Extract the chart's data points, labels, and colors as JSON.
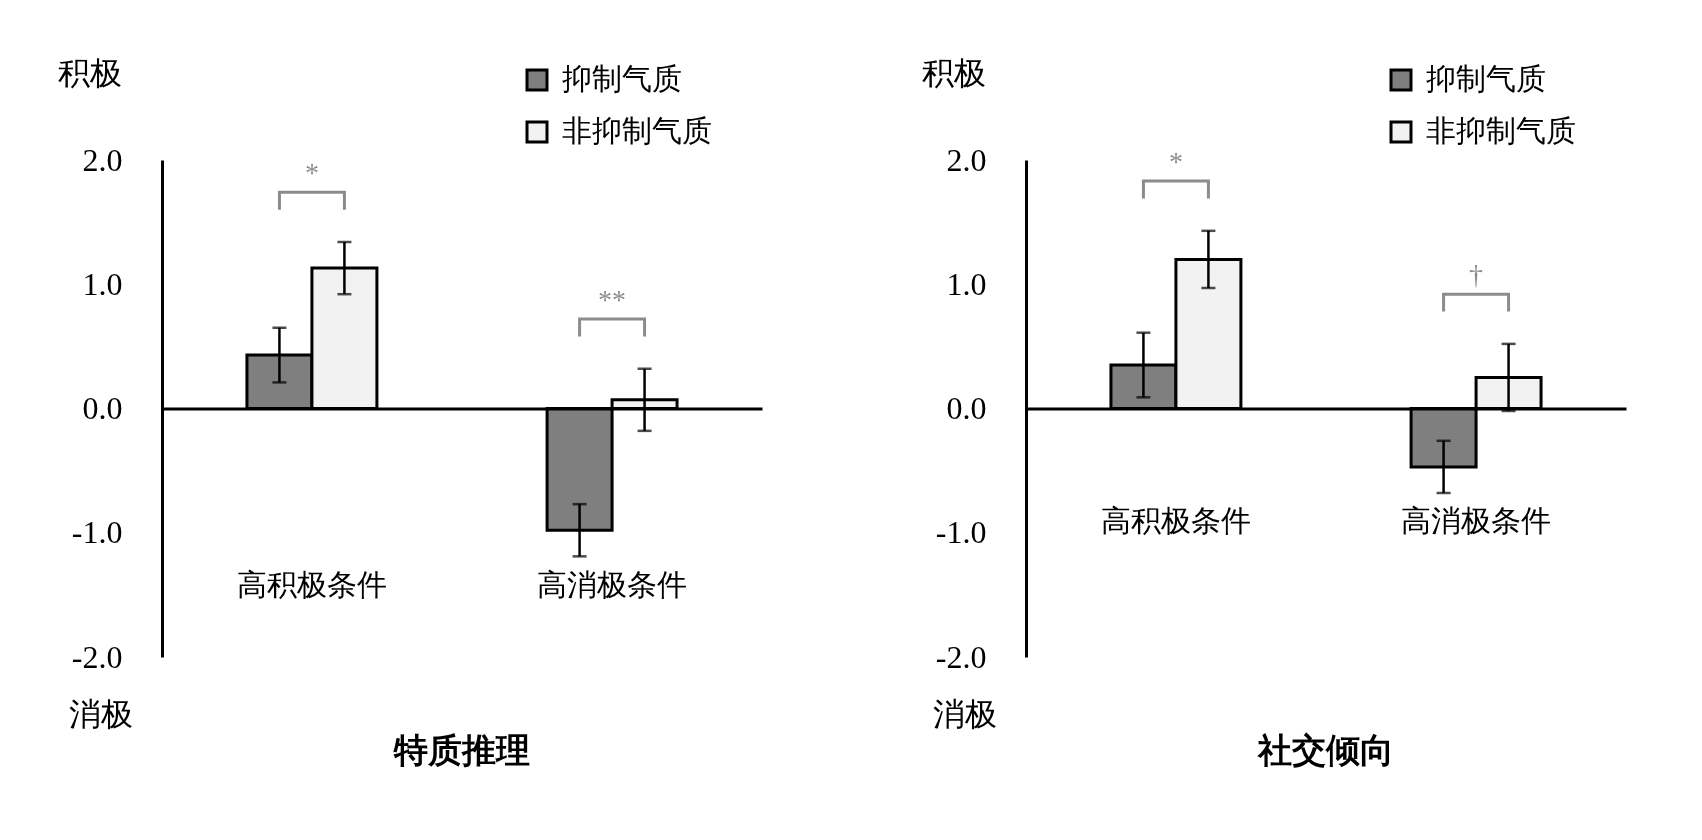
{
  "chart_data": [
    {
      "type": "bar",
      "title": "特质推理",
      "categories": [
        "高积极条件",
        "高消极条件"
      ],
      "series": [
        {
          "name": "抑制气质",
          "color": "#7f7f7f",
          "values": [
            0.43,
            -0.98
          ],
          "errors": [
            0.22,
            0.21
          ]
        },
        {
          "name": "非抑制气质",
          "color": "#f2f2f2",
          "values": [
            1.13,
            0.07
          ],
          "errors": [
            0.21,
            0.25
          ]
        }
      ],
      "ylim": [
        -2,
        2
      ],
      "yticks": [
        {
          "value": 2,
          "label": "2.0"
        },
        {
          "value": 1,
          "label": "1.0"
        },
        {
          "value": 0,
          "label": "0.0"
        },
        {
          "value": -1,
          "label": "-1.0"
        },
        {
          "value": -2,
          "label": "-2.0"
        }
      ],
      "annotations": [
        "积极",
        "消极",
        "*",
        "**"
      ],
      "legend": "top right"
    },
    {
      "type": "bar",
      "title": "社交倾向",
      "categories": [
        "高积极条件",
        "高消极条件"
      ],
      "series": [
        {
          "name": "抑制气质",
          "color": "#7f7f7f",
          "values": [
            0.35,
            -0.47
          ],
          "errors": [
            0.26,
            0.21
          ]
        },
        {
          "name": "非抑制气质",
          "color": "#f2f2f2",
          "values": [
            1.2,
            0.25
          ],
          "errors": [
            0.23,
            0.27
          ]
        }
      ],
      "ylim": [
        -2,
        2
      ],
      "yticks": [
        {
          "value": 2,
          "label": "2.0"
        },
        {
          "value": 1,
          "label": "1.0"
        },
        {
          "value": 0,
          "label": "0.0"
        },
        {
          "value": -1,
          "label": "-1.0"
        },
        {
          "value": -2,
          "label": "-2.0"
        }
      ],
      "annotations": [
        "积极",
        "消极",
        "*",
        "†"
      ],
      "legend": "top right"
    }
  ]
}
